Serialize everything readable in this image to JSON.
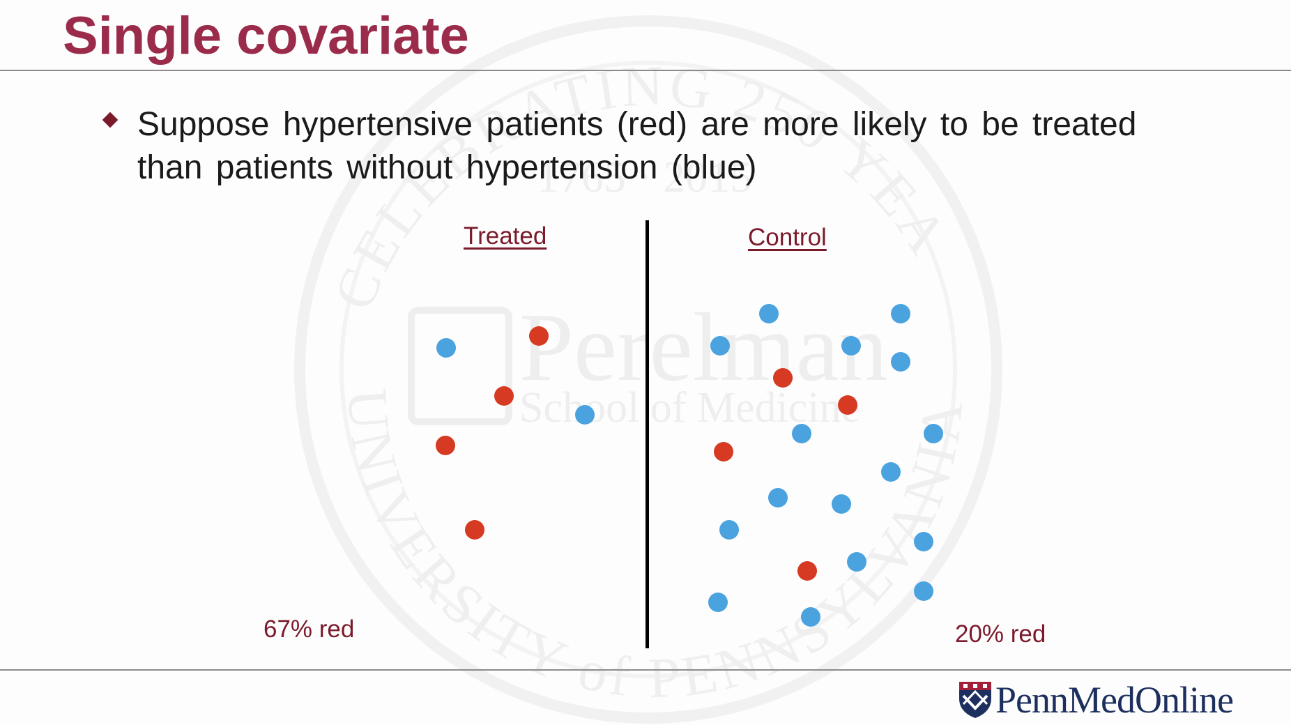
{
  "slide": {
    "title": "Single covariate",
    "bullet": "Suppose hypertensive patients (red) are more likely to be treated than patients without hypertension (blue)"
  },
  "groups": {
    "treated_label": "Treated",
    "control_label": "Control",
    "treated_pct": "67% red",
    "control_pct": "20% red"
  },
  "chart_data": {
    "type": "scatter",
    "colors": {
      "red": "#d63a22",
      "blue": "#4aa3df"
    },
    "panels": [
      {
        "name": "Treated",
        "counts": {
          "red": 4,
          "blue": 2
        },
        "percent_red": 67
      },
      {
        "name": "Control",
        "counts": {
          "red": 4,
          "blue": 16
        },
        "percent_red": 20
      }
    ]
  },
  "logo": {
    "text": "PennMedOnline",
    "seal_text_top": "CELEBRATING 250 YEARS",
    "seal_text_bottom": "UNIVERSITY of PENNSYLVANIA",
    "seal_name": "Perelman",
    "seal_school": "School of Medicine",
    "seal_years": "1765 · 2015"
  },
  "colors": {
    "title": "#9b2b4a",
    "accent": "#7a1a2a",
    "logo": "#1c2f5e"
  }
}
